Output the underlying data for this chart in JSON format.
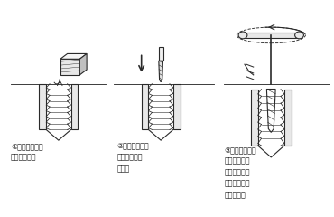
{
  "background_color": "#ffffff",
  "text_color": "#1a1a1a",
  "line_color": "#2a2a2a",
  "light_shade": "#e8e8e8",
  "dark_shade": "#c0c0c0",
  "fig_width": 3.7,
  "fig_height": 2.4,
  "dpi": 100,
  "labels": [
    "ドリルで下穴\n寸法の穴あけ",
    "ボルト抜きを\nドリル穴に差\nし込む",
    "ボルト抜きを\nタップハンド\nルでつかみ左\n回しでボルト\nを抜き取る"
  ],
  "step_labels": [
    "①",
    "②",
    "③"
  ]
}
